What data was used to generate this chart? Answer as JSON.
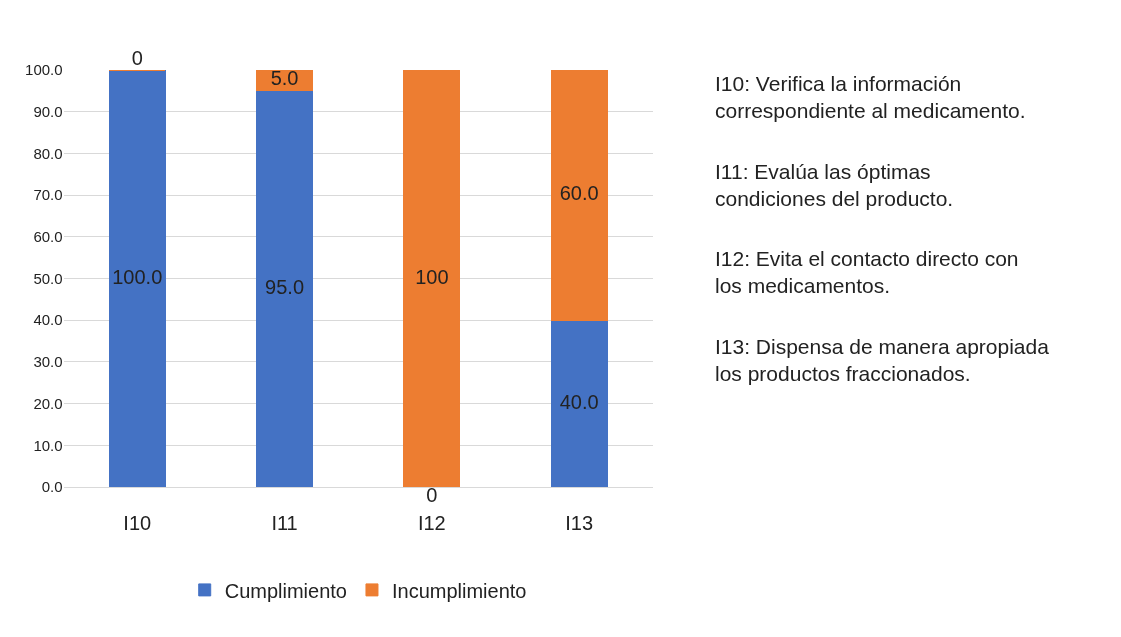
{
  "chart_data": {
    "type": "bar",
    "stacked": true,
    "categories": [
      "I10",
      "I11",
      "I12",
      "I13"
    ],
    "series": [
      {
        "name": "Cumplimiento",
        "color": "#4472c4",
        "values": [
          100.0,
          95.0,
          0,
          40.0
        ],
        "value_labels": [
          "100.0",
          "95.0",
          "0",
          "40.0"
        ]
      },
      {
        "name": "Incumplimiento",
        "color": "#ed7d31",
        "values": [
          0,
          5.0,
          100,
          60.0
        ],
        "value_labels": [
          "0",
          "5.0",
          "100",
          "60.0"
        ]
      }
    ],
    "ylim": [
      0,
      100
    ],
    "yticks": [
      {
        "value": 0,
        "label": "0.0"
      },
      {
        "value": 10,
        "label": "10.0"
      },
      {
        "value": 20,
        "label": "20.0"
      },
      {
        "value": 30,
        "label": "30.0"
      },
      {
        "value": 40,
        "label": "40.0"
      },
      {
        "value": 50,
        "label": "50.0"
      },
      {
        "value": 60,
        "label": "60.0"
      },
      {
        "value": 70,
        "label": "70.0"
      },
      {
        "value": 80,
        "label": "80.0"
      },
      {
        "value": 90,
        "label": "90.0"
      },
      {
        "value": 100,
        "label": "100.0"
      }
    ],
    "grid": "y",
    "legend": "bottom",
    "annotations": [
      "I10: Verifica la información correspondiente al medicamento.",
      "I11: Evalúa las óptimas condiciones del producto.",
      "I12: Evita el contacto directo con los medicamentos.",
      "I13: Dispensa de manera apropiada los productos fraccionados."
    ]
  }
}
